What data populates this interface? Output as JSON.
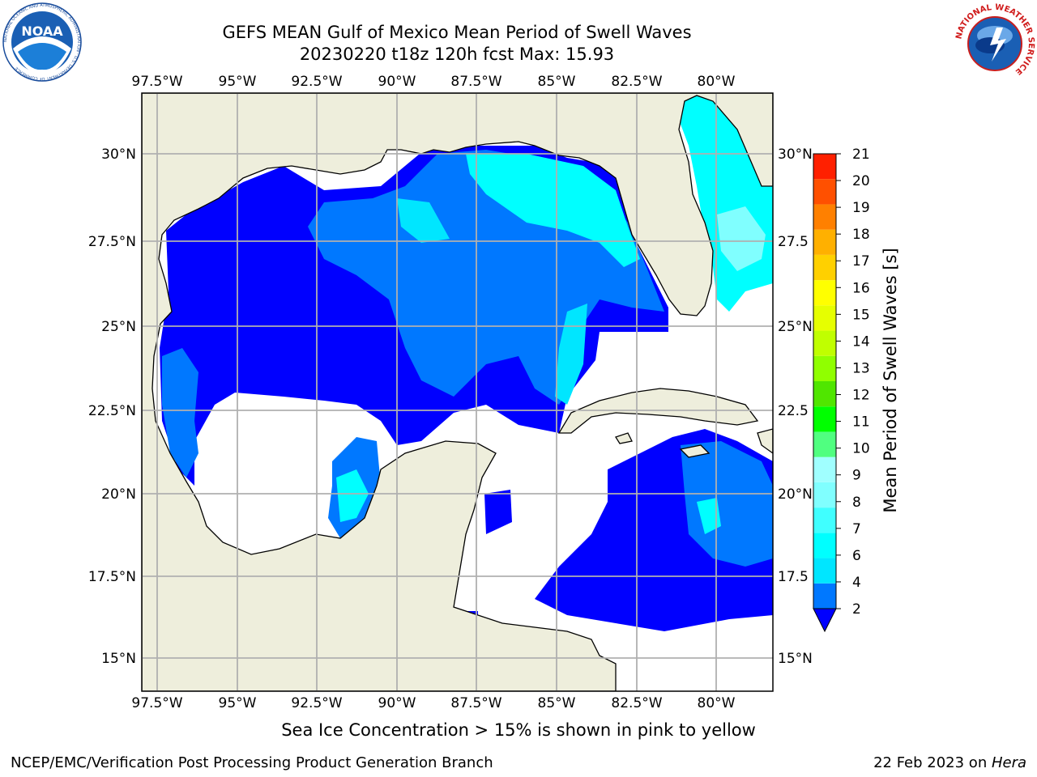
{
  "header": {
    "title_line1": "GEFS MEAN Gulf of Mexico Mean Period of Swell Waves",
    "title_line2": "20230220 t18z 120h fcst   Max: 15.93"
  },
  "logos": {
    "left": {
      "name": "noaa-logo",
      "text": "NOAA",
      "ring_text": "NATIONAL OCEANIC AND ATMOSPHERIC ADMINISTRATION · U.S. DEPARTMENT OF COMMERCE"
    },
    "right": {
      "name": "nws-logo",
      "ring_text": "NATIONAL WEATHER SERVICE"
    }
  },
  "map": {
    "region": "Gulf of Mexico",
    "lon_range": [
      -98.0,
      -78.3
    ],
    "lat_range": [
      14.0,
      31.8
    ],
    "lon_ticks_top": [
      "97.5°W",
      "95°W",
      "92.5°W",
      "90°W",
      "87.5°W",
      "85°W",
      "82.5°W",
      "80°W"
    ],
    "lon_ticks_bottom": [
      "97.5°W",
      "95°W",
      "92.5°W",
      "90°W",
      "87.5°W",
      "85°W",
      "82.5°W",
      "80°W"
    ],
    "lat_ticks_left": [
      "30°N",
      "27.5°N",
      "25°N",
      "22.5°N",
      "20°N",
      "17.5°N",
      "15°N"
    ],
    "lat_ticks_right": [
      "30°N",
      "27.5",
      "25°N",
      "22.5",
      "20°N",
      "17.5",
      "15°N"
    ],
    "land_color": "#eeeedc",
    "grid_color": "#b0b0b0"
  },
  "colorbar": {
    "label": "Mean Period of Swell Waves [s]",
    "levels": [
      "2",
      "4",
      "6",
      "7",
      "8",
      "9",
      "10",
      "11",
      "12",
      "13",
      "14",
      "15",
      "16",
      "17",
      "18",
      "19",
      "20",
      "21"
    ],
    "colors": [
      "#0078ff",
      "#00e6ff",
      "#00ffff",
      "#40ffff",
      "#80ffff",
      "#a0ffff",
      "#50ff80",
      "#00ff00",
      "#50e600",
      "#90ff00",
      "#c0ff00",
      "#e6ff00",
      "#ffff00",
      "#ffd000",
      "#ffb000",
      "#ff8000",
      "#ff5000",
      "#ff2000",
      "#ff0000"
    ],
    "extend_color": "#0000ff"
  },
  "note": "Sea Ice Concentration > 15% is shown in pink to yellow",
  "footer": {
    "left": "NCEP/EMC/Verification Post Processing Product Generation Branch",
    "right_prefix": "22 Feb 2023 on ",
    "right_host": "Hera"
  }
}
